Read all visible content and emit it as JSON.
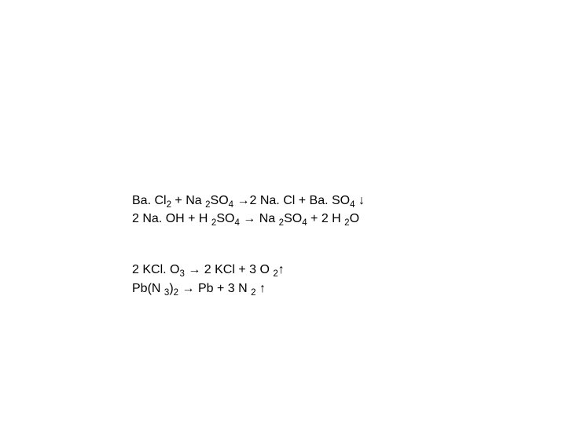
{
  "equations": {
    "eq1": {
      "p1": "Ba. Cl",
      "s1": "2",
      "p2": " + Na ",
      "s2": "2",
      "p3": "SO",
      "s3": "4",
      "p4": " →2 Na. Cl + Ba. SO",
      "s4": "4",
      "p5": " ↓"
    },
    "eq2": {
      "p1": " 2 Na. OH + H ",
      "s1": "2",
      "p2": "SO",
      "s2": "4",
      "p3": " → Na ",
      "s3": "2",
      "p4": "SO",
      "s4": "4",
      "p5": " + 2 H ",
      "s5": "2",
      "p6": "O"
    },
    "eq3": {
      "p1": " 2 KCl. O",
      "s1": "3",
      "p2": " → 2 KCl + 3 O ",
      "s2": "2",
      "p3": "↑"
    },
    "eq4": {
      "p1": " Pb(N ",
      "s1": "3",
      "p2": ")",
      "s2": "2",
      "p3": " → Pb + 3 N ",
      "s3": "2",
      "p4": " ↑"
    }
  },
  "style": {
    "font_family": "Arial",
    "font_size_pt": 12,
    "text_color": "#000000",
    "background_color": "#ffffff"
  }
}
